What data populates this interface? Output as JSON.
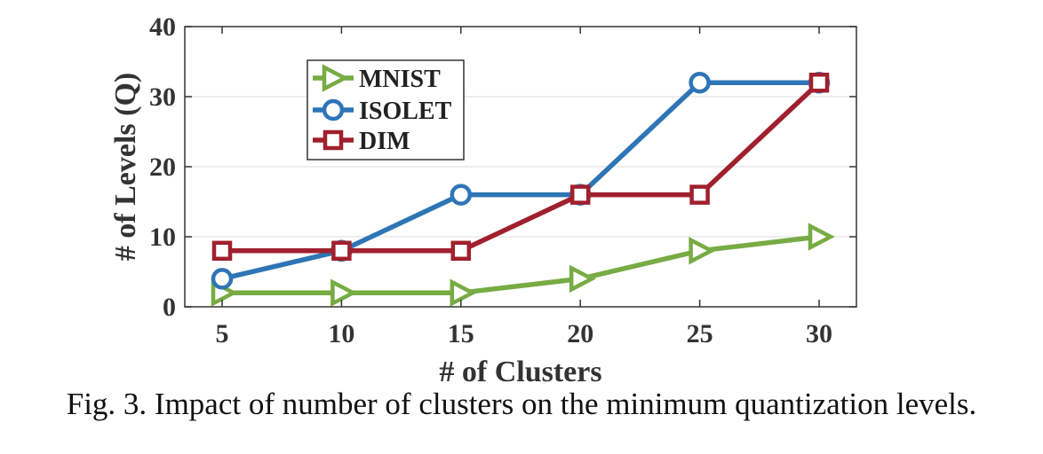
{
  "caption": "Fig. 3.  Impact of number of clusters on the minimum quantization levels.",
  "chart_data": {
    "type": "line",
    "title": "",
    "xlabel": "# of Clusters",
    "ylabel": "# of Levels (Q)",
    "x": [
      5,
      10,
      15,
      20,
      25,
      30
    ],
    "xlim": [
      5,
      30
    ],
    "ylim": [
      0,
      40
    ],
    "xticks": [
      "5",
      "10",
      "15",
      "20",
      "25",
      "30"
    ],
    "yticks": [
      "0",
      "10",
      "20",
      "30",
      "40"
    ],
    "grid": "horizontal",
    "legend_position": "top-left",
    "series": [
      {
        "name": "MNIST",
        "values": [
          2,
          2,
          2,
          4,
          8,
          10
        ],
        "color": "#77ab43",
        "marker": "triangle-right"
      },
      {
        "name": "ISOLET",
        "values": [
          4,
          8,
          16,
          16,
          32,
          32
        ],
        "color": "#2e75b6",
        "marker": "circle"
      },
      {
        "name": "DIM",
        "values": [
          8,
          8,
          8,
          16,
          16,
          32
        ],
        "color": "#a0202d",
        "marker": "square"
      }
    ]
  }
}
